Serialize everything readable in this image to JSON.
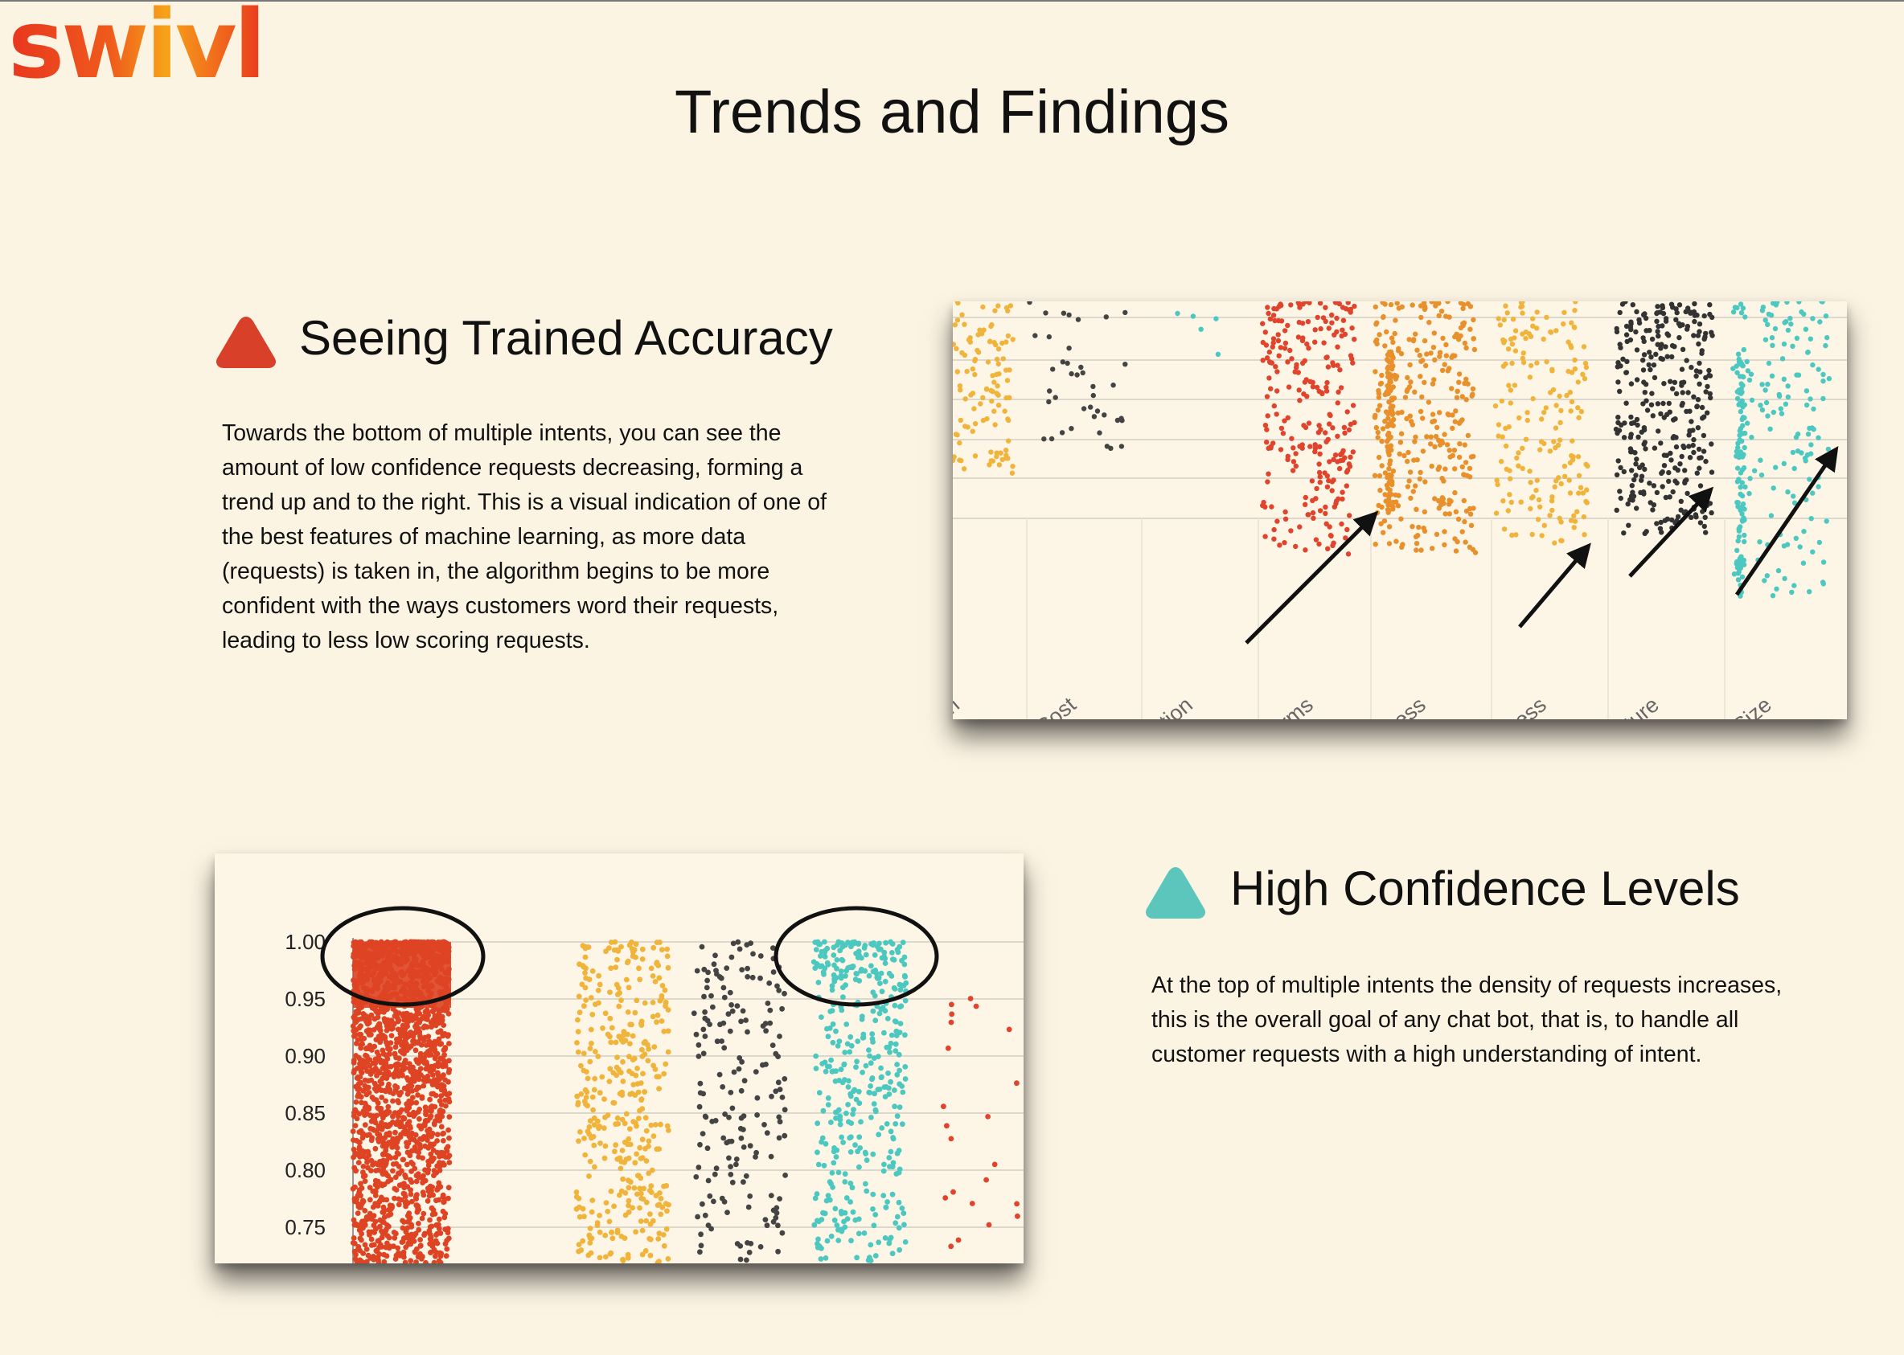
{
  "logo": {
    "text": "swivl"
  },
  "page": {
    "title": "Trends and Findings"
  },
  "section_accuracy": {
    "heading": "Seeing Trained Accuracy",
    "icon": "triangle-red-icon",
    "icon_color": "#d8402a",
    "body": "Towards the bottom of multiple intents, you can see the amount of low confidence requests decreasing, forming a trend up and to the right. This is a visual indication of one of the best features of machine learning, as more data (requests) is taken in, the algorithm begins to be more confident with the ways customers word their requests, leading to less low scoring requests."
  },
  "section_confidence": {
    "heading": "High Confidence Levels",
    "icon": "triangle-teal-icon",
    "icon_color": "#5cc6bd",
    "body": "At the top of multiple intents the density of requests increases, this is the overall goal of any chat bot, that is, to handle all customer requests with a high understanding of intent."
  },
  "chart_data": [
    {
      "type": "scatter",
      "title": "",
      "categories": [
        "n",
        "stand Cost",
        "fferentiation",
        "ease Terms",
        "In Process",
        "se Process",
        "ge Feature",
        "torage Size"
      ],
      "series_colors": [
        "#f0b43c",
        "#444444",
        "#4cc8c0",
        "#e0442c",
        "#e8902c",
        "#f0b43c",
        "#333333",
        "#4cc8c0"
      ],
      "point_density": [
        "medium",
        "sparse",
        "very sparse",
        "dense",
        "dense",
        "medium",
        "dense",
        "medium"
      ],
      "annotations": [
        "arrow",
        "arrow",
        "arrow",
        "arrow"
      ],
      "grid": true
    },
    {
      "type": "scatter",
      "title": "",
      "y_ticks": [
        "1.00",
        "0.95",
        "0.90",
        "0.85",
        "0.80",
        "0.75"
      ],
      "ylim": [
        0.72,
        1.0
      ],
      "series_colors": [
        "#de4424",
        "#f0b43c",
        "#444444",
        "#4cc8c0",
        "#e0442c"
      ],
      "point_density": [
        "very dense",
        "dense",
        "medium",
        "dense",
        "very sparse"
      ],
      "annotations": [
        "circle",
        "circle"
      ],
      "grid": true
    }
  ]
}
